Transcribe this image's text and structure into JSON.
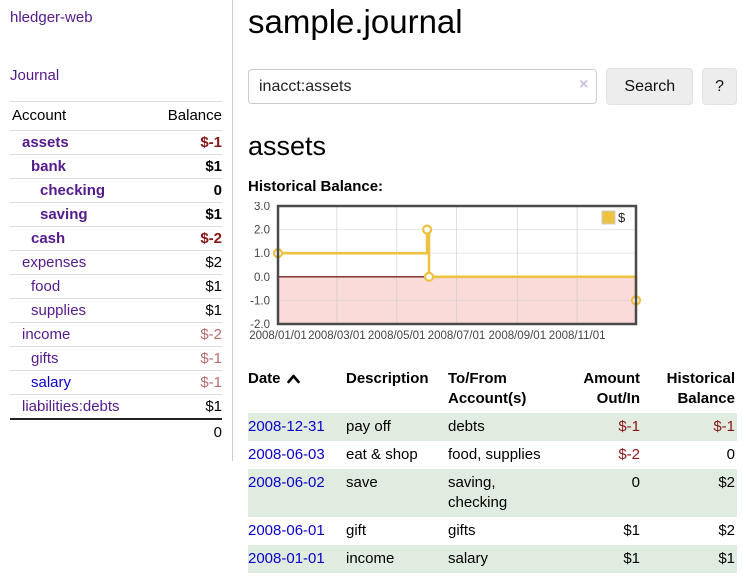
{
  "colors": {
    "link_purple": "#551a8b",
    "link_blue": "#0a00cc",
    "negative_strong": "#8b1515",
    "negative_soft": "#b76c6c",
    "row_green": "#e0ecdf"
  },
  "app_title": "hledger-web",
  "sidebar": {
    "journal_link": "Journal",
    "account_header": "Account",
    "balance_header": "Balance",
    "accounts": [
      {
        "name": "assets",
        "balance": "$-1",
        "depth": 1,
        "bold": true
      },
      {
        "name": "bank",
        "balance": "$1",
        "depth": 2,
        "bold": true
      },
      {
        "name": "checking",
        "balance": "0",
        "depth": 3,
        "bold": true
      },
      {
        "name": "saving",
        "balance": "$1",
        "depth": 3,
        "bold": true
      },
      {
        "name": "cash",
        "balance": "$-2",
        "depth": 2,
        "bold": true
      },
      {
        "name": "expenses",
        "balance": "$2",
        "depth": 1
      },
      {
        "name": "food",
        "balance": "$1",
        "depth": 2
      },
      {
        "name": "supplies",
        "balance": "$1",
        "depth": 2
      },
      {
        "name": "income",
        "balance": "$-2",
        "depth": 1
      },
      {
        "name": "gifts",
        "balance": "$-1",
        "depth": 2
      },
      {
        "name": "salary",
        "balance": "$-1",
        "depth": 2,
        "unvisited": true
      },
      {
        "name": "liabilities:debts",
        "balance": "$1",
        "depth": 1
      }
    ],
    "total": "0"
  },
  "main": {
    "title": "sample.journal",
    "search": {
      "value": "inacct:assets",
      "clear_icon": "×",
      "search_button": "Search",
      "help_button": "?"
    },
    "account_heading": "assets",
    "section_label": "Historical Balance:"
  },
  "chart_data": {
    "type": "line",
    "title": "Historical Balance",
    "x_range": [
      "2008-01-01",
      "2008-12-31"
    ],
    "y_range": [
      -2,
      3
    ],
    "y_ticks": [
      3,
      2,
      1,
      0,
      -1,
      -2
    ],
    "y_tick_labels": [
      "3.0",
      "2.0",
      "1.0",
      "0.0",
      "-1.0",
      "-2.0"
    ],
    "x_ticks": [
      "2008/01/01",
      "2008/03/01",
      "2008/05/01",
      "2008/07/01",
      "2008/09/01",
      "2008/11/01"
    ],
    "series": [
      {
        "name": "$",
        "color": "#edc240",
        "step": true,
        "points": [
          [
            "2008-01-01",
            1
          ],
          [
            "2008-06-01",
            2
          ],
          [
            "2008-06-03",
            0
          ],
          [
            "2008-12-31",
            -1
          ]
        ]
      }
    ],
    "legend": [
      {
        "label": "$",
        "color": "#edc240"
      }
    ],
    "legend_position": "top-right",
    "grid": true,
    "negative_region_fill": "#fbdada",
    "zero_line_color": "#7a1f1f",
    "grid_color": "#c9c9c9",
    "border_color": "#4a4a4a"
  },
  "register": {
    "headers": {
      "date": "Date",
      "description": "Description",
      "to_from": "To/From Account(s)",
      "amount": "Amount Out/In",
      "balance": "Historical Balance"
    },
    "rows": [
      {
        "date": "2008-12-31",
        "description": "pay off",
        "to_from": "debts",
        "amount": "$-1",
        "balance": "$-1"
      },
      {
        "date": "2008-06-03",
        "description": "eat & shop",
        "to_from": "food, supplies",
        "amount": "$-2",
        "balance": "0"
      },
      {
        "date": "2008-06-02",
        "description": "save",
        "to_from": "saving,\nchecking",
        "amount": "0",
        "balance": "$2"
      },
      {
        "date": "2008-06-01",
        "description": "gift",
        "to_from": "gifts",
        "amount": "$1",
        "balance": "$2"
      },
      {
        "date": "2008-01-01",
        "description": "income",
        "to_from": "salary",
        "amount": "$1",
        "balance": "$1"
      }
    ]
  }
}
